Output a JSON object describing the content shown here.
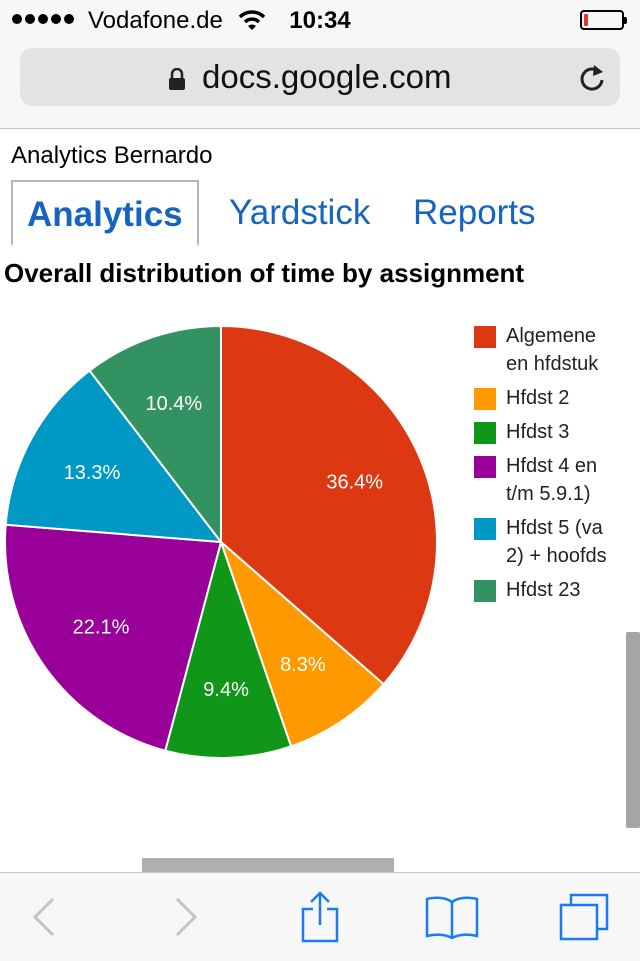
{
  "status_bar": {
    "carrier": "Vodafone.de",
    "time": "10:34",
    "battery_level": 0.12
  },
  "browser": {
    "url": "docs.google.com"
  },
  "document": {
    "title": "Analytics Bernardo"
  },
  "tabs": [
    {
      "label": "Analytics",
      "active": true
    },
    {
      "label": "Yardstick",
      "active": false
    },
    {
      "label": "Reports",
      "active": false
    }
  ],
  "chart_title": "Overall distribution of time by assignment",
  "chart_data": {
    "type": "pie",
    "title": "Overall distribution of time by assignment",
    "labels": [
      "Algemene en hfdstuk",
      "Hfdst 2",
      "Hfdst 3",
      "Hfdst 4 en t/m 5.9.1)",
      "Hfdst 5 (va 2) + hoofds",
      "Hfdst 23"
    ],
    "values": [
      36.4,
      8.3,
      9.4,
      22.1,
      13.3,
      10.4
    ],
    "value_labels": [
      "36.4%",
      "8.3%",
      "9.4%",
      "22.1%",
      "13.3%",
      "10.4%"
    ],
    "colors": [
      "#dc3912",
      "#ff9900",
      "#109618",
      "#990099",
      "#0099c6",
      "#329262"
    ],
    "legend_position": "right"
  },
  "legend": [
    {
      "text": "Algemene\nen hfdstuk",
      "color": "#dc3912"
    },
    {
      "text": "Hfdst 2",
      "color": "#ff9900"
    },
    {
      "text": "Hfdst 3",
      "color": "#109618"
    },
    {
      "text": "Hfdst 4 en\nt/m 5.9.1)",
      "color": "#990099"
    },
    {
      "text": "Hfdst 5 (va\n2) + hoofds",
      "color": "#0099c6"
    },
    {
      "text": "Hfdst 23",
      "color": "#329262"
    }
  ],
  "toolbar": {
    "back_icon": "chevron-left-icon",
    "forward_icon": "chevron-right-icon",
    "share_icon": "share-icon",
    "bookmarks_icon": "book-icon",
    "tabs_icon": "tabs-icon"
  }
}
